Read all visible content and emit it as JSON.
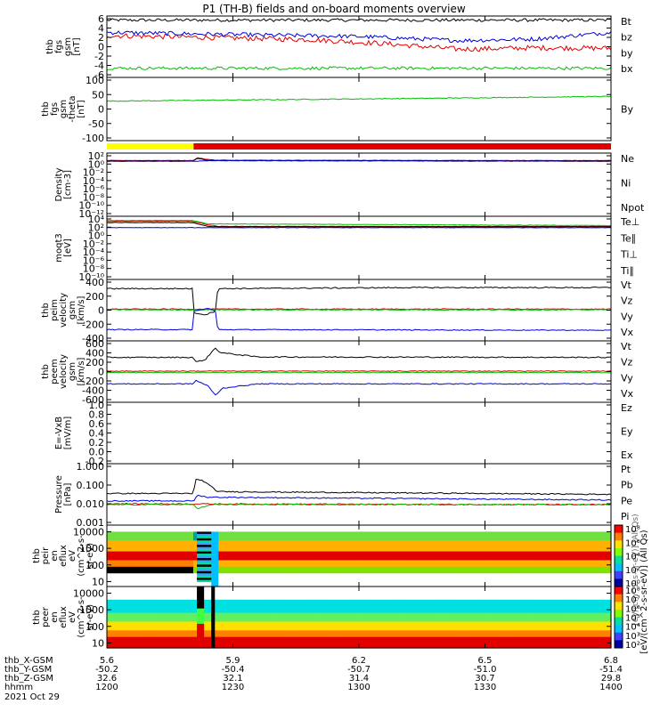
{
  "title": "P1 (TH-B) fields and on-board moments overview",
  "colors": {
    "black": "#000000",
    "red": "#e00000",
    "blue": "#0000e0",
    "green": "#00c000",
    "yellow": "#ffff00"
  },
  "chart_data": [
    {
      "id": "fgs",
      "type": "line",
      "ylabel": [
        "thb",
        "fgs",
        "gsm",
        "[nT]"
      ],
      "yticks": [
        "6",
        "4",
        "2",
        "0",
        "-2",
        "-4",
        "-6"
      ],
      "ylim": [
        -6,
        6
      ],
      "series": [
        {
          "name": "Bt",
          "color": "#000000",
          "base": 5.2,
          "noise": 0.3
        },
        {
          "name": "bz",
          "color": "#e00000",
          "points": [
            [
              0,
              2.2
            ],
            [
              0.2,
              1.8
            ],
            [
              0.4,
              1.4
            ],
            [
              0.55,
              0.6
            ],
            [
              0.7,
              -0.5
            ],
            [
              0.85,
              -0.2
            ],
            [
              1,
              -0.3
            ]
          ],
          "noise": 0.5
        },
        {
          "name": "by",
          "color": "#0000e0",
          "points": [
            [
              0,
              2.8
            ],
            [
              0.3,
              2.3
            ],
            [
              0.5,
              2.0
            ],
            [
              0.7,
              1.2
            ],
            [
              0.85,
              1.5
            ],
            [
              1,
              2.8
            ]
          ],
          "noise": 0.4
        },
        {
          "name": "bx",
          "color": "#00c000",
          "base": -4.2,
          "noise": 0.3
        }
      ]
    },
    {
      "id": "fgsth",
      "type": "line",
      "ylabel": [
        "thb",
        "fgs",
        "gsm",
        "-theta",
        "[nT]"
      ],
      "yticks": [
        "100",
        "50",
        "0",
        "-50",
        "-100"
      ],
      "ylim": [
        -130,
        110
      ],
      "series": [
        {
          "name": "By",
          "color": "#00c000",
          "points": [
            [
              0,
              20
            ],
            [
              0.3,
              25
            ],
            [
              0.6,
              30
            ],
            [
              1,
              38
            ]
          ],
          "noise": 1.5
        }
      ]
    },
    {
      "id": "density",
      "type": "line",
      "log": true,
      "ylabel": [
        "Density",
        "[cm-3]"
      ],
      "yticks": [
        "10²",
        "10⁰",
        "10⁻²",
        "10⁻⁴",
        "10⁻⁶",
        "10⁻⁸",
        "10⁻¹⁰",
        "10⁻¹²"
      ],
      "ylim": [
        -13,
        2
      ],
      "series": [
        {
          "name": "Ne",
          "color": "#e00000",
          "points": [
            [
              0,
              0.25
            ],
            [
              0.172,
              0.25
            ],
            [
              0.18,
              0.9
            ],
            [
              0.2,
              0.5
            ],
            [
              0.22,
              0.25
            ],
            [
              1,
              0.25
            ]
          ],
          "noise": 0.05
        },
        {
          "name": "Ni",
          "color": "#000000",
          "points": [
            [
              0,
              0.15
            ],
            [
              0.17,
              0.15
            ],
            [
              0.18,
              0.7
            ],
            [
              0.2,
              0.3
            ],
            [
              1,
              0.15
            ]
          ],
          "noise": 0.05
        },
        {
          "name": "Npot",
          "color": "#0000e0",
          "points": [
            [
              0,
              0.05
            ],
            [
              0.17,
              0.05
            ],
            [
              0.2,
              0.2
            ],
            [
              1,
              0.05
            ]
          ],
          "noise": 0.05
        }
      ]
    },
    {
      "id": "moqt",
      "type": "line",
      "log": true,
      "ylabel": [
        "moqt3",
        "[eV]"
      ],
      "yticks": [
        "10⁴",
        "10²",
        "10⁰",
        "10⁻²",
        "10⁻⁴",
        "10⁻⁶",
        "10⁻⁸",
        "10⁻¹⁰"
      ],
      "ylim": [
        -11,
        4
      ],
      "series": [
        {
          "name": "Te⊥",
          "color": "#e00000",
          "points": [
            [
              0,
              2.8
            ],
            [
              0.17,
              2.8
            ],
            [
              0.2,
              2.0
            ],
            [
              0.22,
              1.6
            ],
            [
              1,
              1.6
            ]
          ],
          "noise": 0.05
        },
        {
          "name": "Te∥",
          "color": "#000000",
          "points": [
            [
              0,
              2.5
            ],
            [
              0.17,
              2.5
            ],
            [
              0.2,
              1.6
            ],
            [
              0.23,
              1.5
            ],
            [
              1,
              1.5
            ]
          ],
          "noise": 0.05
        },
        {
          "name": "Ti⊥",
          "color": "#0000e0",
          "points": [
            [
              0,
              1.3
            ],
            [
              1,
              1.3
            ]
          ],
          "noise": 0.05
        },
        {
          "name": "Ti∥",
          "color": "#00c000",
          "points": [
            [
              0,
              3.0
            ],
            [
              0.17,
              3.0
            ],
            [
              0.2,
              2.2
            ],
            [
              1,
              1.8
            ]
          ],
          "noise": 0.05
        }
      ]
    },
    {
      "id": "peim",
      "type": "line",
      "ylabel": [
        "thb",
        "peim",
        "velocity",
        "gsm",
        "[km/s]"
      ],
      "yticks": [
        "400",
        "200",
        "0",
        "-200",
        "-400"
      ],
      "ylim": [
        -450,
        420
      ],
      "series": [
        {
          "name": "Vt",
          "color": "#000000",
          "points": [
            [
              0,
              290
            ],
            [
              0.172,
              290
            ],
            [
              0.173,
              -50
            ],
            [
              0.195,
              -80
            ],
            [
              0.215,
              -30
            ],
            [
              0.22,
              290
            ],
            [
              0.6,
              305
            ],
            [
              1,
              305
            ]
          ],
          "noise": 8
        },
        {
          "name": "Vz",
          "color": "#e00000",
          "points": [
            [
              0,
              0
            ],
            [
              1,
              0
            ]
          ],
          "noise": 6
        },
        {
          "name": "Vy",
          "color": "#00c000",
          "points": [
            [
              0,
              -10
            ],
            [
              1,
              -10
            ]
          ],
          "noise": 6
        },
        {
          "name": "Vx",
          "color": "#0000e0",
          "points": [
            [
              0,
              -290
            ],
            [
              0.172,
              -290
            ],
            [
              0.173,
              -30
            ],
            [
              0.2,
              10
            ],
            [
              0.215,
              -20
            ],
            [
              0.22,
              -290
            ],
            [
              1,
              -300
            ]
          ],
          "noise": 6
        }
      ]
    },
    {
      "id": "peem",
      "type": "line",
      "ylabel": [
        "thb",
        "peem",
        "velocity",
        "gsm",
        "[km/s]"
      ],
      "yticks": [
        "600",
        "400",
        "200",
        "0",
        "-200",
        "-400",
        "-600"
      ],
      "ylim": [
        -650,
        650
      ],
      "series": [
        {
          "name": "Vt",
          "color": "#000000",
          "points": [
            [
              0,
              300
            ],
            [
              0.172,
              300
            ],
            [
              0.175,
              200
            ],
            [
              0.195,
              250
            ],
            [
              0.215,
              500
            ],
            [
              0.225,
              400
            ],
            [
              0.3,
              310
            ],
            [
              1,
              300
            ]
          ],
          "noise": 12
        },
        {
          "name": "Vz",
          "color": "#e00000",
          "points": [
            [
              0,
              10
            ],
            [
              1,
              10
            ]
          ],
          "noise": 8
        },
        {
          "name": "Vy",
          "color": "#00c000",
          "points": [
            [
              0,
              -20
            ],
            [
              1,
              -20
            ]
          ],
          "noise": 8
        },
        {
          "name": "Vx",
          "color": "#0000e0",
          "points": [
            [
              0,
              -260
            ],
            [
              0.172,
              -260
            ],
            [
              0.175,
              -180
            ],
            [
              0.2,
              -300
            ],
            [
              0.215,
              -500
            ],
            [
              0.23,
              -350
            ],
            [
              0.3,
              -260
            ],
            [
              1,
              -260
            ]
          ],
          "noise": 10
        }
      ]
    },
    {
      "id": "efield",
      "type": "line",
      "ylabel": [
        "E=-VxB",
        "[mV/m]"
      ],
      "yticks": [
        "1.0",
        "0.8",
        "0.6",
        "0.4",
        "0.2",
        "0.0",
        "-0.2"
      ],
      "ylim": [
        -0.25,
        1.05
      ],
      "series": [
        {
          "name": "Ez",
          "color": "#e00000"
        },
        {
          "name": "Ey",
          "color": "#00c000"
        },
        {
          "name": "Ex",
          "color": "#0000e0"
        }
      ]
    },
    {
      "id": "pressure",
      "type": "line",
      "log": true,
      "ylabel": [
        "Pressure",
        "[nPa]"
      ],
      "yticks": [
        "1.000",
        "0.100",
        "0.010",
        "0.001"
      ],
      "ylim": [
        -3.1,
        0.2
      ],
      "series": [
        {
          "name": "Pt",
          "color": "#000000",
          "points": [
            [
              0,
              -1.4
            ],
            [
              0.172,
              -1.4
            ],
            [
              0.175,
              -0.65
            ],
            [
              0.19,
              -0.7
            ],
            [
              0.205,
              -1.0
            ],
            [
              0.22,
              -1.3
            ],
            [
              1,
              -1.45
            ]
          ],
          "noise": 0.03
        },
        {
          "name": "Pb",
          "color": "#e00000",
          "points": [
            [
              0,
              -1.95
            ],
            [
              0.5,
              -1.98
            ],
            [
              1,
              -2.0
            ]
          ],
          "noise": 0.03
        },
        {
          "name": "Pe",
          "color": "#00c000",
          "points": [
            [
              0,
              -2.0
            ],
            [
              0.172,
              -2.0
            ],
            [
              0.18,
              -2.2
            ],
            [
              0.21,
              -2.0
            ],
            [
              1,
              -2.0
            ]
          ],
          "noise": 0.03
        },
        {
          "name": "Pi",
          "color": "#0000e0",
          "points": [
            [
              0,
              -1.8
            ],
            [
              0.172,
              -1.8
            ],
            [
              0.18,
              -1.5
            ],
            [
              0.2,
              -1.6
            ],
            [
              1,
              -1.75
            ]
          ],
          "noise": 0.03
        }
      ]
    },
    {
      "id": "peir",
      "type": "heatmap",
      "ylabel": [
        "thb",
        "peir",
        "en",
        "eflux",
        "eV",
        "(cm^2-s-",
        "sr-eV)"
      ],
      "yticks": [
        "10000",
        "1000",
        "100",
        "10"
      ],
      "ylim": [
        0.7,
        4.4
      ]
    },
    {
      "id": "peer",
      "type": "heatmap",
      "ylabel": [
        "thb",
        "peer",
        "en",
        "eflux",
        "eV",
        "(cm^2-s-",
        "sr-eV)"
      ],
      "yticks": [
        "10000",
        "1000",
        "100",
        "10"
      ],
      "ylim": [
        0.7,
        4.4
      ]
    }
  ],
  "status_bar": {
    "segments": [
      {
        "from": 0,
        "to": 0.172,
        "color": "#ffff00"
      },
      {
        "from": 0.172,
        "to": 1,
        "color": "#e00000"
      }
    ]
  },
  "colorbar": {
    "label": "[eV/(cm^2-s-sr-eV)] (All Qs)",
    "top_ticks": [
      "10⁸",
      "10⁶",
      "10⁴",
      "10²",
      "10⁰"
    ],
    "bottom_ticks": [
      "10⁸",
      "10⁷",
      "10⁶",
      "10⁵",
      "10⁴",
      "10³",
      "10²"
    ],
    "overlay": "[eV/(cm^2-s-sr-eV)] (All Qs)"
  },
  "x_axis": {
    "rows": [
      {
        "label": "thb_X-GSM",
        "values": [
          "5.6",
          "5.9",
          "6.2",
          "6.5",
          "6.8"
        ]
      },
      {
        "label": "thb_Y-GSM",
        "values": [
          "-50.2",
          "-50.4",
          "-50.7",
          "-51.0",
          "-51.4"
        ]
      },
      {
        "label": "thb_Z-GSM",
        "values": [
          "32.6",
          "32.1",
          "31.4",
          "30.7",
          "29.8"
        ]
      },
      {
        "label": "hhmm",
        "values": [
          "1200",
          "1230",
          "1300",
          "1330",
          "1400"
        ]
      }
    ],
    "date": "2021 Oct 29"
  }
}
